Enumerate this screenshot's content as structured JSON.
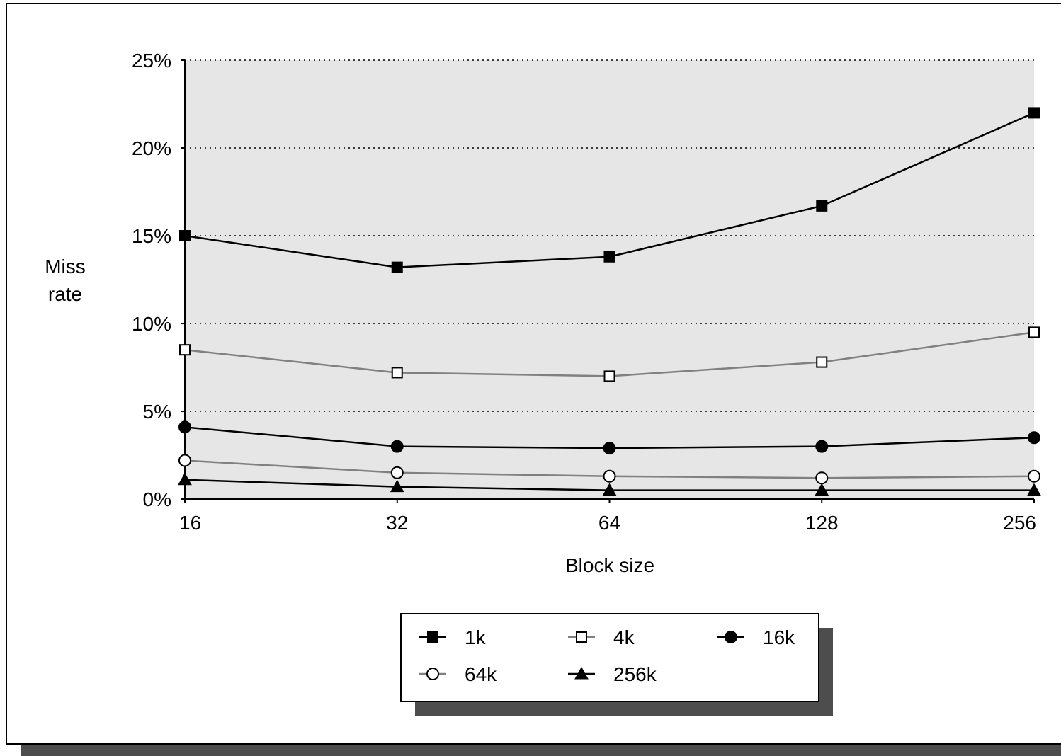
{
  "chart_data": {
    "type": "line",
    "xlabel": "Block size",
    "ylabel_lines": [
      "Miss",
      "rate"
    ],
    "x": [
      16,
      32,
      64,
      128,
      256
    ],
    "x_tick_labels": [
      "16",
      "32",
      "64",
      "128",
      "256"
    ],
    "x_scale": "log2",
    "y_unit": "%",
    "ylim": [
      0,
      25
    ],
    "y_ticks": [
      0,
      5,
      10,
      15,
      20,
      25
    ],
    "y_tick_labels": [
      "0%",
      "5%",
      "10%",
      "15%",
      "20%",
      "25%"
    ],
    "grid": "horizontal dotted",
    "plot_background": "#e6e6e6",
    "legend_position": "bottom-center",
    "series": [
      {
        "name": "1k",
        "values": [
          15.0,
          13.2,
          13.8,
          16.7,
          22.0
        ],
        "marker": "square-filled",
        "line_color": "#000000"
      },
      {
        "name": "4k",
        "values": [
          8.5,
          7.2,
          7.0,
          7.8,
          9.5
        ],
        "marker": "square-open",
        "line_color": "#808080"
      },
      {
        "name": "16k",
        "values": [
          4.1,
          3.0,
          2.9,
          3.0,
          3.5
        ],
        "marker": "circle-filled",
        "line_color": "#000000"
      },
      {
        "name": "64k",
        "values": [
          2.2,
          1.5,
          1.3,
          1.2,
          1.3
        ],
        "marker": "circle-open",
        "line_color": "#808080"
      },
      {
        "name": "256k",
        "values": [
          1.1,
          0.7,
          0.5,
          0.5,
          0.5
        ],
        "marker": "triangle-filled",
        "line_color": "#000000"
      }
    ]
  }
}
